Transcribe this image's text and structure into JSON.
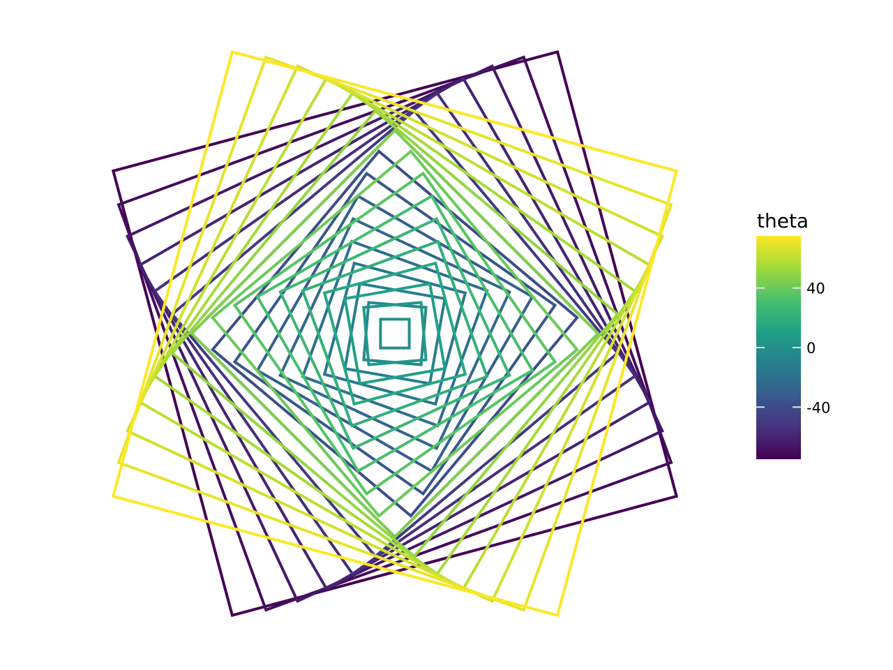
{
  "chart_data": {
    "type": "line",
    "title": "",
    "xlabel": "",
    "ylabel": "",
    "grid": false,
    "axes_visible": false,
    "legend": {
      "title": "theta",
      "type": "colorbar",
      "placement": "right",
      "range": [
        -75,
        75
      ],
      "ticks": [
        -40,
        0,
        40
      ],
      "tick_labels": [
        "-40",
        "0",
        "40"
      ]
    },
    "palette": [
      "#440154",
      "#46327e",
      "#365c8d",
      "#277f8e",
      "#1fa187",
      "#4ac16d",
      "#a0da39",
      "#fde725"
    ],
    "series": [
      {
        "theta": -75,
        "half_width": 16.0
      },
      {
        "theta": -70,
        "half_width": 15.0
      },
      {
        "theta": -65,
        "half_width": 14.0
      },
      {
        "theta": -60,
        "half_width": 13.0
      },
      {
        "theta": -55,
        "half_width": 12.0
      },
      {
        "theta": -50,
        "half_width": 11.0
      },
      {
        "theta": -45,
        "half_width": 10.0
      },
      {
        "theta": -40,
        "half_width": 9.0
      },
      {
        "theta": -35,
        "half_width": 8.0
      },
      {
        "theta": -30,
        "half_width": 7.0
      },
      {
        "theta": -25,
        "half_width": 6.0
      },
      {
        "theta": -20,
        "half_width": 5.0
      },
      {
        "theta": -15,
        "half_width": 4.0
      },
      {
        "theta": -10,
        "half_width": 3.0
      },
      {
        "theta": -5,
        "half_width": 2.0
      },
      {
        "theta": 0,
        "half_width": 1.0
      },
      {
        "theta": 5,
        "half_width": 2.0
      },
      {
        "theta": 10,
        "half_width": 3.0
      },
      {
        "theta": 15,
        "half_width": 4.0
      },
      {
        "theta": 20,
        "half_width": 5.0
      },
      {
        "theta": 25,
        "half_width": 6.0
      },
      {
        "theta": 30,
        "half_width": 7.0
      },
      {
        "theta": 35,
        "half_width": 8.0
      },
      {
        "theta": 40,
        "half_width": 9.0
      },
      {
        "theta": 45,
        "half_width": 10.0
      },
      {
        "theta": 50,
        "half_width": 11.0
      },
      {
        "theta": 55,
        "half_width": 12.0
      },
      {
        "theta": 60,
        "half_width": 13.0
      },
      {
        "theta": 65,
        "half_width": 14.0
      },
      {
        "theta": 70,
        "half_width": 15.0
      },
      {
        "theta": 75,
        "half_width": 16.0
      }
    ]
  }
}
